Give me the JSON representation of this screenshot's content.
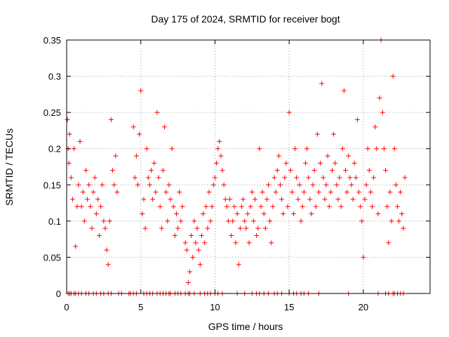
{
  "chart_data": {
    "type": "scatter",
    "title": "Day 175 of 2024, SRMTID for receiver bogt",
    "xlabel": "GPS time / hours",
    "ylabel": "SRMTID / TECUs",
    "xlim": [
      0,
      24.5
    ],
    "ylim": [
      0,
      0.35
    ],
    "x_ticks": [
      0,
      5,
      10,
      15,
      20
    ],
    "x_tick_labels": [
      "0",
      "5",
      "10",
      "15",
      "20"
    ],
    "y_ticks": [
      0,
      0.05,
      0.1,
      0.15,
      0.2,
      0.25,
      0.3,
      0.35
    ],
    "y_tick_labels": [
      "0",
      "0.05",
      "0.1",
      "0.15",
      "0.2",
      "0.25",
      "0.3",
      "0.35"
    ],
    "grid": true,
    "marker": "+",
    "series": [
      {
        "name": "SRMTID",
        "color": "#ff0000",
        "points": [
          [
            0.05,
            0.24
          ],
          [
            0.1,
            0.2
          ],
          [
            0.15,
            0.18
          ],
          [
            0.2,
            0.22
          ],
          [
            0.3,
            0.16
          ],
          [
            0.4,
            0.13
          ],
          [
            0.5,
            0.2
          ],
          [
            0.6,
            0.065
          ],
          [
            0.7,
            0.12
          ],
          [
            0.8,
            0.15
          ],
          [
            0.9,
            0.21
          ],
          [
            1.0,
            0.12
          ],
          [
            1.1,
            0.14
          ],
          [
            1.2,
            0.1
          ],
          [
            1.3,
            0.17
          ],
          [
            1.4,
            0.13
          ],
          [
            1.5,
            0.15
          ],
          [
            1.6,
            0.12
          ],
          [
            1.7,
            0.09
          ],
          [
            1.8,
            0.14
          ],
          [
            1.9,
            0.16
          ],
          [
            2.0,
            0.11
          ],
          [
            2.1,
            0.13
          ],
          [
            2.2,
            0.08
          ],
          [
            2.3,
            0.12
          ],
          [
            2.4,
            0.15
          ],
          [
            2.5,
            0.1
          ],
          [
            2.6,
            0.09
          ],
          [
            2.7,
            0.06
          ],
          [
            2.8,
            0.04
          ],
          [
            2.9,
            0.1
          ],
          [
            3.0,
            0.24
          ],
          [
            3.1,
            0.17
          ],
          [
            3.2,
            0.15
          ],
          [
            3.3,
            0.19
          ],
          [
            3.4,
            0.14
          ],
          [
            4.5,
            0.23
          ],
          [
            4.6,
            0.16
          ],
          [
            4.7,
            0.19
          ],
          [
            4.8,
            0.15
          ],
          [
            4.9,
            0.22
          ],
          [
            5.0,
            0.28
          ],
          [
            5.1,
            0.11
          ],
          [
            5.2,
            0.13
          ],
          [
            5.3,
            0.09
          ],
          [
            5.4,
            0.2
          ],
          [
            5.5,
            0.16
          ],
          [
            5.6,
            0.15
          ],
          [
            5.7,
            0.17
          ],
          [
            5.8,
            0.13
          ],
          [
            5.9,
            0.18
          ],
          [
            6.0,
            0.14
          ],
          [
            6.1,
            0.25
          ],
          [
            6.2,
            0.16
          ],
          [
            6.3,
            0.12
          ],
          [
            6.4,
            0.09
          ],
          [
            6.5,
            0.17
          ],
          [
            6.6,
            0.23
          ],
          [
            6.7,
            0.14
          ],
          [
            6.8,
            0.1
          ],
          [
            6.9,
            0.15
          ],
          [
            7.0,
            0.13
          ],
          [
            7.1,
            0.2
          ],
          [
            7.2,
            0.12
          ],
          [
            7.3,
            0.08
          ],
          [
            7.4,
            0.11
          ],
          [
            7.5,
            0.09
          ],
          [
            7.6,
            0.14
          ],
          [
            7.7,
            0.1
          ],
          [
            7.8,
            0.12
          ],
          [
            8.0,
            0.07
          ],
          [
            8.1,
            0.06
          ],
          [
            8.2,
            0.015
          ],
          [
            8.3,
            0.03
          ],
          [
            8.4,
            0.08
          ],
          [
            8.5,
            0.05
          ],
          [
            8.6,
            0.1
          ],
          [
            8.7,
            0.07
          ],
          [
            8.8,
            0.09
          ],
          [
            8.9,
            0.06
          ],
          [
            9.0,
            0.04
          ],
          [
            9.1,
            0.08
          ],
          [
            9.2,
            0.11
          ],
          [
            9.3,
            0.07
          ],
          [
            9.4,
            0.12
          ],
          [
            9.5,
            0.09
          ],
          [
            9.6,
            0.14
          ],
          [
            9.7,
            0.1
          ],
          [
            9.8,
            0.12
          ],
          [
            9.9,
            0.15
          ],
          [
            10.0,
            0.16
          ],
          [
            10.1,
            0.18
          ],
          [
            10.2,
            0.2
          ],
          [
            10.3,
            0.21
          ],
          [
            10.4,
            0.19
          ],
          [
            10.5,
            0.17
          ],
          [
            10.6,
            0.15
          ],
          [
            10.7,
            0.13
          ],
          [
            10.8,
            0.12
          ],
          [
            10.9,
            0.1
          ],
          [
            11.0,
            0.13
          ],
          [
            11.1,
            0.08
          ],
          [
            11.2,
            0.1
          ],
          [
            11.3,
            0.12
          ],
          [
            11.4,
            0.07
          ],
          [
            11.5,
            0.11
          ],
          [
            11.6,
            0.04
          ],
          [
            11.7,
            0.09
          ],
          [
            11.8,
            0.12
          ],
          [
            11.9,
            0.13
          ],
          [
            12.0,
            0.1
          ],
          [
            12.1,
            0.09
          ],
          [
            12.2,
            0.11
          ],
          [
            12.3,
            0.07
          ],
          [
            12.4,
            0.12
          ],
          [
            12.5,
            0.14
          ],
          [
            12.6,
            0.1
          ],
          [
            12.7,
            0.13
          ],
          [
            12.8,
            0.08
          ],
          [
            12.9,
            0.09
          ],
          [
            13.0,
            0.2
          ],
          [
            13.1,
            0.12
          ],
          [
            13.2,
            0.14
          ],
          [
            13.3,
            0.11
          ],
          [
            13.4,
            0.09
          ],
          [
            13.5,
            0.13
          ],
          [
            13.6,
            0.15
          ],
          [
            13.7,
            0.1
          ],
          [
            13.8,
            0.07
          ],
          [
            13.9,
            0.12
          ],
          [
            14.0,
            0.16
          ],
          [
            14.1,
            0.14
          ],
          [
            14.2,
            0.17
          ],
          [
            14.3,
            0.19
          ],
          [
            14.4,
            0.15
          ],
          [
            14.5,
            0.13
          ],
          [
            14.6,
            0.11
          ],
          [
            14.7,
            0.16
          ],
          [
            14.8,
            0.18
          ],
          [
            14.9,
            0.12
          ],
          [
            15.0,
            0.25
          ],
          [
            15.1,
            0.17
          ],
          [
            15.2,
            0.14
          ],
          [
            15.3,
            0.11
          ],
          [
            15.4,
            0.2
          ],
          [
            15.5,
            0.16
          ],
          [
            15.6,
            0.13
          ],
          [
            15.7,
            0.15
          ],
          [
            15.8,
            0.1
          ],
          [
            15.9,
            0.12
          ],
          [
            16.0,
            0.14
          ],
          [
            16.1,
            0.18
          ],
          [
            16.2,
            0.2
          ],
          [
            16.3,
            0.16
          ],
          [
            16.4,
            0.13
          ],
          [
            16.5,
            0.11
          ],
          [
            16.6,
            0.15
          ],
          [
            16.7,
            0.17
          ],
          [
            16.8,
            0.12
          ],
          [
            16.9,
            0.22
          ],
          [
            17.0,
            0.14
          ],
          [
            17.1,
            0.18
          ],
          [
            17.2,
            0.29
          ],
          [
            17.3,
            0.16
          ],
          [
            17.4,
            0.13
          ],
          [
            17.5,
            0.15
          ],
          [
            17.6,
            0.19
          ],
          [
            17.7,
            0.12
          ],
          [
            17.8,
            0.14
          ],
          [
            17.9,
            0.17
          ],
          [
            18.0,
            0.22
          ],
          [
            18.1,
            0.18
          ],
          [
            18.2,
            0.15
          ],
          [
            18.3,
            0.13
          ],
          [
            18.4,
            0.16
          ],
          [
            18.5,
            0.12
          ],
          [
            18.6,
            0.2
          ],
          [
            18.7,
            0.28
          ],
          [
            18.8,
            0.17
          ],
          [
            18.9,
            0.14
          ],
          [
            19.0,
            0.19
          ],
          [
            19.1,
            0.16
          ],
          [
            19.2,
            0.15
          ],
          [
            19.3,
            0.13
          ],
          [
            19.4,
            0.18
          ],
          [
            19.5,
            0.16
          ],
          [
            19.6,
            0.24
          ],
          [
            19.7,
            0.14
          ],
          [
            19.8,
            0.12
          ],
          [
            19.9,
            0.1
          ],
          [
            20.0,
            0.05
          ],
          [
            20.1,
            0.13
          ],
          [
            20.2,
            0.15
          ],
          [
            20.3,
            0.2
          ],
          [
            20.4,
            0.17
          ],
          [
            20.5,
            0.14
          ],
          [
            20.6,
            0.12
          ],
          [
            20.7,
            0.16
          ],
          [
            20.8,
            0.23
          ],
          [
            20.9,
            0.2
          ],
          [
            21.0,
            0.11
          ],
          [
            21.1,
            0.27
          ],
          [
            21.2,
            0.35
          ],
          [
            21.3,
            0.25
          ],
          [
            21.4,
            0.2
          ],
          [
            21.5,
            0.17
          ],
          [
            21.6,
            0.12
          ],
          [
            21.7,
            0.07
          ],
          [
            21.8,
            0.14
          ],
          [
            21.9,
            0.1
          ],
          [
            22.0,
            0.3
          ],
          [
            22.1,
            0.2
          ],
          [
            22.2,
            0.15
          ],
          [
            22.3,
            0.12
          ],
          [
            22.4,
            0.1
          ],
          [
            22.5,
            0.14
          ],
          [
            22.6,
            0.11
          ],
          [
            22.7,
            0.09
          ],
          [
            22.8,
            0.16
          ]
        ],
        "zero_points": [
          0.1,
          0.2,
          0.3,
          0.5,
          0.6,
          0.8,
          1.0,
          1.3,
          1.5,
          1.8,
          2.0,
          2.3,
          2.5,
          2.8,
          3.0,
          3.5,
          3.7,
          4.2,
          4.3,
          4.5,
          4.7,
          5.2,
          5.4,
          5.6,
          5.8,
          6.1,
          6.3,
          6.5,
          6.7,
          6.9,
          7.0,
          7.3,
          7.5,
          7.7,
          8.0,
          8.2,
          8.3,
          8.6,
          9.0,
          9.3,
          9.5,
          9.7,
          10.0,
          10.2,
          10.5,
          11.5,
          12.0,
          12.5,
          12.8,
          13.0,
          13.3,
          13.6,
          14.0,
          14.2,
          14.5,
          15.0,
          15.3,
          15.5,
          15.8,
          16.0,
          16.3,
          17.0,
          19.0,
          21.0,
          21.5,
          21.7,
          22.0,
          22.1,
          22.3,
          22.5,
          22.7
        ]
      }
    ]
  }
}
